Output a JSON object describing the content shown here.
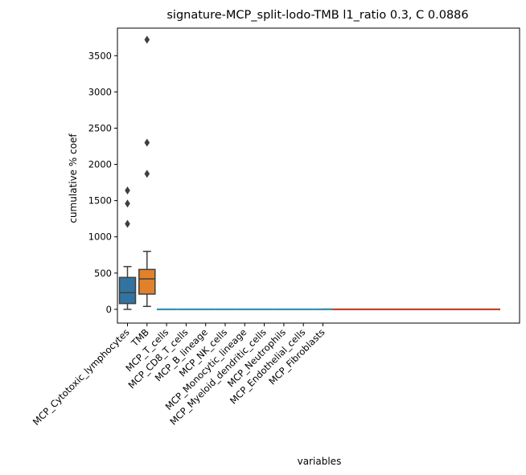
{
  "chart_data": {
    "type": "box",
    "title": "signature-MCP_split-lodo-TMB l1_ratio 0.3, C 0.0886",
    "xlabel": "variables",
    "ylabel": "cumulative % coef",
    "ylim": [
      -190,
      3880
    ],
    "yticks": [
      0,
      500,
      1000,
      1500,
      2000,
      2500,
      3000,
      3500
    ],
    "grid": false,
    "legend": "none",
    "categories": [
      "MCP_Cytotoxic_lymphocytes",
      "TMB",
      "MCP_T_cells",
      "MCP_CD8_T_cells",
      "MCP_B_lineage",
      "MCP_NK_cells",
      "MCP_Monocytic_lineage",
      "MCP_Myeloid_dendritic_cells",
      "MCP_Neutrophils",
      "MCP_Endothelial_cells",
      "MCP_Fibroblasts"
    ],
    "boxes": [
      {
        "q1": 80,
        "median": 230,
        "q3": 440,
        "whisker_low": 0,
        "whisker_high": 590,
        "outliers": [
          1180,
          1460,
          1640
        ],
        "color": "#3274a1"
      },
      {
        "q1": 210,
        "median": 420,
        "q3": 550,
        "whisker_low": 40,
        "whisker_high": 800,
        "outliers": [
          1870,
          2300,
          3720
        ],
        "color": "#e1812c"
      },
      {
        "q1": 0,
        "median": 0,
        "q3": 0,
        "whisker_low": 0,
        "whisker_high": 0,
        "outliers": [],
        "color": "#3a923a"
      },
      {
        "q1": 0,
        "median": 0,
        "q3": 0,
        "whisker_low": 0,
        "whisker_high": 0,
        "outliers": [],
        "color": "#c03d3e"
      },
      {
        "q1": 0,
        "median": 0,
        "q3": 0,
        "whisker_low": 0,
        "whisker_high": 0,
        "outliers": [],
        "color": "#9372b2"
      },
      {
        "q1": 0,
        "median": 0,
        "q3": 0,
        "whisker_low": 0,
        "whisker_high": 0,
        "outliers": [],
        "color": "#845b53"
      },
      {
        "q1": 0,
        "median": 0,
        "q3": 0,
        "whisker_low": 0,
        "whisker_high": 0,
        "outliers": [],
        "color": "#d684bd"
      },
      {
        "q1": 0,
        "median": 0,
        "q3": 0,
        "whisker_low": 0,
        "whisker_high": 0,
        "outliers": [],
        "color": "#7f7f7f"
      },
      {
        "q1": 0,
        "median": 0,
        "q3": 0,
        "whisker_low": 0,
        "whisker_high": 0,
        "outliers": [],
        "color": "#a9aa35"
      },
      {
        "q1": 0,
        "median": 0,
        "q3": 0,
        "whisker_low": 0,
        "whisker_high": 0,
        "outliers": [],
        "color": "#2ea4b8"
      },
      {
        "q1": 0,
        "median": 0,
        "q3": 0,
        "whisker_low": 0,
        "whisker_high": 0,
        "outliers": [],
        "color": "#c03d3e"
      }
    ],
    "colors": {
      "cytotoxic": "#3274a1",
      "tmb": "#e1812c",
      "flat_box_line": "#3a8fb0",
      "extended_line": "#c0442c",
      "box_edge": "#3f3f3f"
    }
  }
}
